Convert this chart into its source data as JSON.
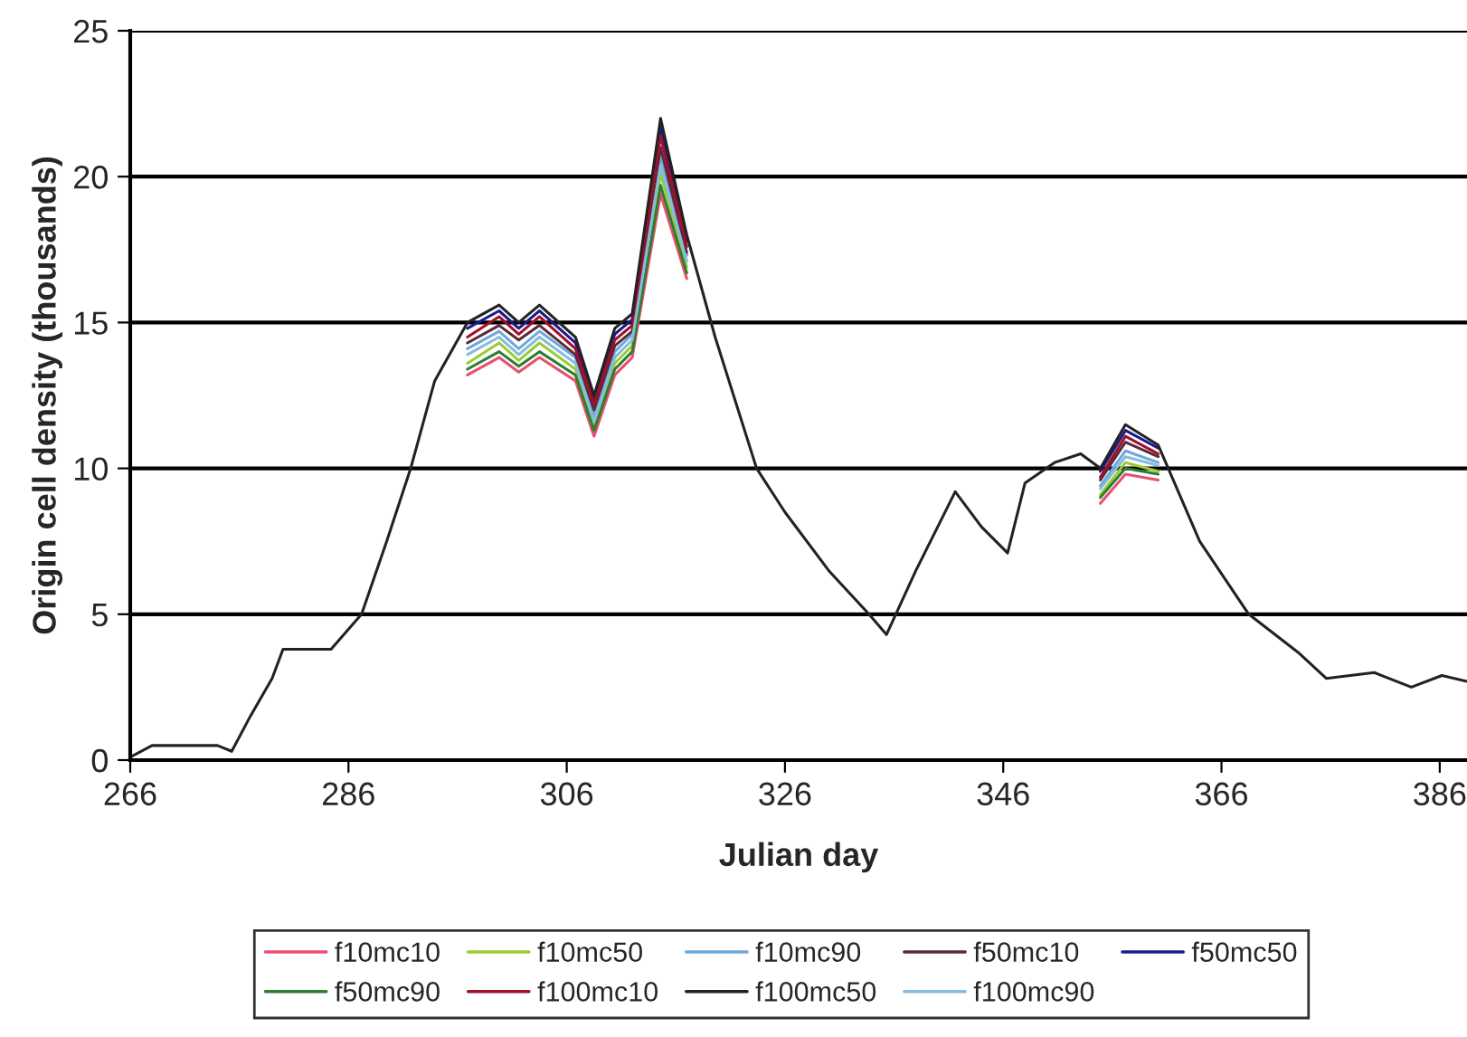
{
  "chart_data": {
    "type": "line",
    "xlabel": "Julian day",
    "ylabel": "Origin cell density (thousands)",
    "x": [
      266,
      268,
      274,
      275.3,
      277,
      279,
      280,
      284.4,
      287.2,
      289.5,
      291.7,
      293.9,
      296.9,
      299.8,
      301.6,
      303.5,
      306.8,
      308.5,
      310.4,
      312,
      314.6,
      317,
      319.6,
      323.4,
      326,
      330,
      333.7,
      335.3,
      338,
      341.6,
      344,
      346.4,
      348,
      350.7,
      353.1,
      354.9,
      357.2,
      360.2,
      364,
      368.5,
      373,
      375.6,
      380,
      383.4,
      386.2,
      388.5
    ],
    "xlim": [
      266,
      388.5
    ],
    "xticks": [
      266,
      286,
      306,
      326,
      346,
      366,
      386
    ],
    "ylim": [
      0,
      25
    ],
    "yticks": [
      0,
      5,
      10,
      15,
      20,
      25
    ],
    "grid": "y",
    "legend": "bottom",
    "line_style": "solid",
    "marker": "none",
    "series": [
      {
        "name": "f10mc10",
        "color": "#e8506e",
        "values": [
          null,
          null,
          null,
          null,
          null,
          null,
          null,
          null,
          null,
          null,
          null,
          null,
          13.2,
          13.8,
          13.3,
          13.8,
          13.0,
          11.1,
          13.2,
          13.8,
          19.4,
          16.5,
          null,
          null,
          null,
          null,
          null,
          null,
          null,
          null,
          null,
          null,
          null,
          null,
          null,
          8.8,
          9.8,
          9.6,
          null,
          null,
          null,
          null,
          null,
          null,
          null,
          null
        ]
      },
      {
        "name": "f10mc50",
        "color": "#9acd32",
        "values": [
          null,
          null,
          null,
          null,
          null,
          null,
          null,
          null,
          null,
          null,
          null,
          null,
          13.6,
          14.3,
          13.7,
          14.3,
          13.4,
          11.5,
          13.6,
          14.2,
          20.1,
          16.9,
          null,
          null,
          null,
          null,
          null,
          null,
          null,
          null,
          null,
          null,
          null,
          null,
          null,
          9.1,
          10.2,
          9.9,
          null,
          null,
          null,
          null,
          null,
          null,
          null,
          null
        ]
      },
      {
        "name": "f10mc90",
        "color": "#6fa8dc",
        "values": [
          null,
          null,
          null,
          null,
          null,
          null,
          null,
          null,
          null,
          null,
          null,
          null,
          14.1,
          14.7,
          14.1,
          14.7,
          13.8,
          11.8,
          14.0,
          14.6,
          20.7,
          17.3,
          null,
          null,
          null,
          null,
          null,
          null,
          null,
          null,
          null,
          null,
          null,
          null,
          null,
          9.4,
          10.6,
          10.2,
          null,
          null,
          null,
          null,
          null,
          null,
          null,
          null
        ]
      },
      {
        "name": "f50mc10",
        "color": "#5a2a3a",
        "values": [
          null,
          null,
          null,
          null,
          null,
          null,
          null,
          null,
          null,
          null,
          null,
          null,
          14.3,
          14.9,
          14.4,
          14.9,
          13.9,
          12.0,
          14.2,
          14.7,
          21.0,
          17.4,
          null,
          null,
          null,
          null,
          null,
          null,
          null,
          null,
          null,
          null,
          null,
          null,
          null,
          9.6,
          10.9,
          10.4,
          null,
          null,
          null,
          null,
          null,
          null,
          null,
          null
        ]
      },
      {
        "name": "f50mc50",
        "color": "#1a1a8c",
        "values": [
          null,
          null,
          null,
          null,
          null,
          null,
          null,
          null,
          null,
          null,
          null,
          null,
          14.8,
          15.4,
          14.8,
          15.4,
          14.3,
          12.3,
          14.6,
          15.1,
          21.7,
          17.8,
          null,
          null,
          null,
          null,
          null,
          null,
          null,
          null,
          null,
          null,
          null,
          null,
          null,
          9.9,
          11.3,
          10.7,
          null,
          null,
          null,
          null,
          null,
          null,
          null,
          null
        ]
      },
      {
        "name": "f50mc90",
        "color": "#2e7d32",
        "values": [
          null,
          null,
          null,
          null,
          null,
          null,
          null,
          null,
          null,
          null,
          null,
          null,
          13.4,
          14.0,
          13.5,
          14.0,
          13.2,
          11.3,
          13.4,
          14.0,
          19.7,
          16.7,
          null,
          null,
          null,
          null,
          null,
          null,
          null,
          null,
          null,
          null,
          null,
          null,
          null,
          9.0,
          10.0,
          9.8,
          null,
          null,
          null,
          null,
          null,
          null,
          null,
          null
        ]
      },
      {
        "name": "f100mc10",
        "color": "#a0102a",
        "values": [
          null,
          null,
          null,
          null,
          null,
          null,
          null,
          null,
          null,
          null,
          null,
          null,
          14.5,
          15.2,
          14.6,
          15.2,
          14.1,
          12.2,
          14.4,
          14.9,
          21.4,
          17.6,
          null,
          null,
          null,
          null,
          null,
          null,
          null,
          null,
          null,
          null,
          null,
          null,
          null,
          9.7,
          11.1,
          10.5,
          null,
          null,
          null,
          null,
          null,
          null,
          null,
          null
        ]
      },
      {
        "name": "f100mc50",
        "color": "#222222",
        "values": [
          0.1,
          0.5,
          0.5,
          0.3,
          1.5,
          2.8,
          3.8,
          3.8,
          5.0,
          7.5,
          10.0,
          13.0,
          15.0,
          15.6,
          15.0,
          15.6,
          14.5,
          12.5,
          14.8,
          15.3,
          22.0,
          18.0,
          14.5,
          10.0,
          8.5,
          6.5,
          5.0,
          4.3,
          6.5,
          9.2,
          8.0,
          7.1,
          9.5,
          10.2,
          10.5,
          10.0,
          11.5,
          10.8,
          7.5,
          5.0,
          3.7,
          2.8,
          3.0,
          2.5,
          2.9,
          2.7
        ]
      },
      {
        "name": "f100mc90",
        "color": "#88bbdd",
        "values": [
          null,
          null,
          null,
          null,
          null,
          null,
          null,
          null,
          null,
          null,
          null,
          null,
          13.9,
          14.5,
          13.9,
          14.5,
          13.6,
          11.6,
          13.8,
          14.4,
          20.4,
          17.1,
          null,
          null,
          null,
          null,
          null,
          null,
          null,
          null,
          null,
          null,
          null,
          null,
          null,
          9.3,
          10.4,
          10.1,
          null,
          null,
          null,
          null,
          null,
          null,
          null,
          null
        ]
      }
    ]
  }
}
